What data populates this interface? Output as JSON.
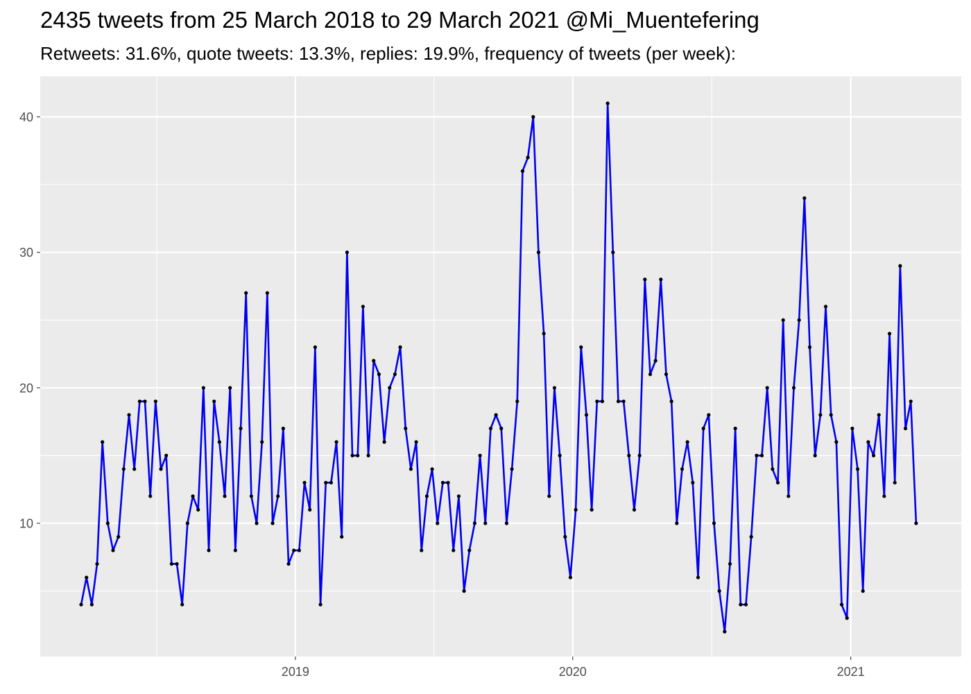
{
  "chart_data": {
    "type": "line",
    "title": "2435 tweets from 25 March 2018 to 29 March 2021 @Mi_Muentefering",
    "subtitle": "Retweets: 31.6%, quote tweets: 13.3%, replies: 19.9%, frequency of tweets (per week):",
    "xlabel": "",
    "ylabel": "",
    "x_unit": "week",
    "x_start": "2018-03-25",
    "x_range": [
      "2018-03-25",
      "2021-03-28"
    ],
    "ylim": [
      0,
      43
    ],
    "yticks": [
      10,
      20,
      30,
      40
    ],
    "xticks": [
      {
        "label": "2019",
        "date": "2019-01-01"
      },
      {
        "label": "2020",
        "date": "2020-01-01"
      },
      {
        "label": "2021",
        "date": "2021-01-01"
      }
    ],
    "grid": true,
    "legend": "none",
    "line_color": "#0000ee",
    "point_color": "#000000",
    "panel_color": "#ebebeb",
    "values": [
      4,
      6,
      4,
      7,
      16,
      10,
      8,
      9,
      14,
      18,
      14,
      19,
      19,
      12,
      19,
      14,
      15,
      7,
      7,
      4,
      10,
      12,
      11,
      20,
      8,
      19,
      16,
      12,
      20,
      8,
      17,
      27,
      12,
      10,
      16,
      27,
      10,
      12,
      17,
      7,
      8,
      8,
      13,
      11,
      23,
      4,
      13,
      13,
      16,
      9,
      30,
      15,
      15,
      26,
      15,
      22,
      21,
      16,
      20,
      21,
      23,
      17,
      14,
      16,
      8,
      12,
      14,
      10,
      13,
      13,
      8,
      12,
      5,
      8,
      10,
      15,
      10,
      17,
      18,
      17,
      10,
      14,
      19,
      36,
      37,
      40,
      30,
      24,
      12,
      20,
      15,
      9,
      6,
      11,
      23,
      18,
      11,
      19,
      19,
      41,
      30,
      19,
      19,
      15,
      11,
      15,
      28,
      21,
      22,
      28,
      21,
      19,
      10,
      14,
      16,
      13,
      6,
      17,
      18,
      10,
      5,
      2,
      7,
      17,
      4,
      4,
      9,
      15,
      15,
      20,
      14,
      13,
      25,
      12,
      20,
      25,
      34,
      23,
      15,
      18,
      26,
      18,
      16,
      4,
      3,
      17,
      14,
      5,
      16,
      15,
      18,
      12,
      24,
      13,
      29,
      17,
      19,
      10
    ]
  }
}
